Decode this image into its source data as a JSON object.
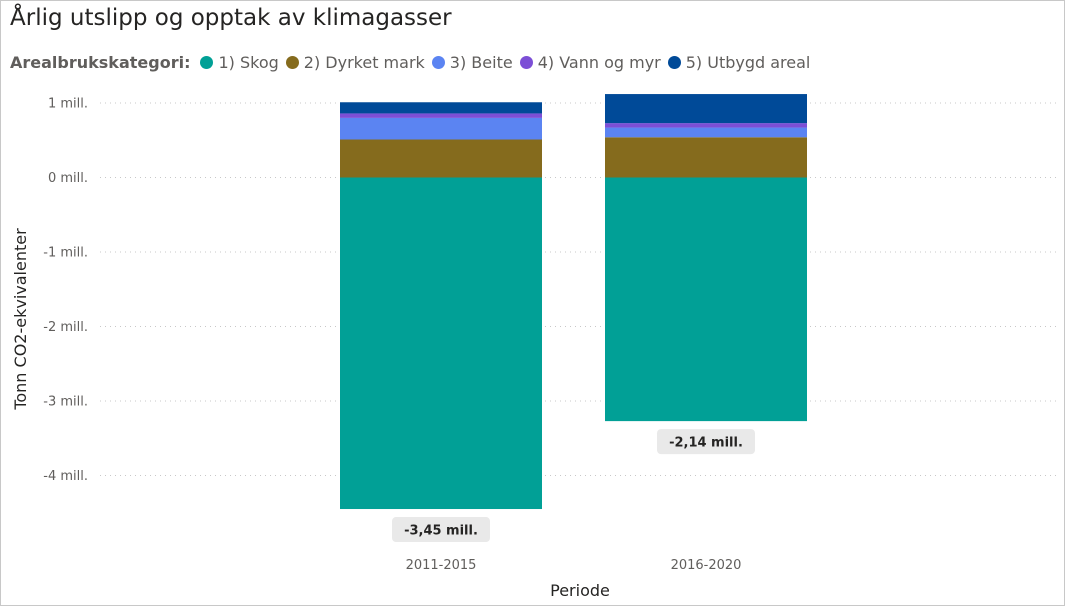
{
  "chart_data": {
    "type": "bar",
    "stacked": true,
    "title": "Årlig utslipp og opptak av klimagasser",
    "legend_title": "Arealbrukskategori:",
    "legend_position": "top-left",
    "xlabel": "Periode",
    "ylabel": "Tonn CO2-ekvivalenter",
    "ylim": [
      -4.5,
      1.2
    ],
    "yticks": [
      1,
      0,
      -1,
      -2,
      -3,
      -4
    ],
    "ytick_labels": [
      "1 mill.",
      "0 mill.",
      "-1 mill.",
      "-2 mill.",
      "-3 mill.",
      "-4 mill."
    ],
    "grid": true,
    "categories": [
      "2011-2015",
      "2016-2020"
    ],
    "series": [
      {
        "name": "1) Skog",
        "color": "#01a096",
        "values": [
          -4.45,
          -3.27
        ]
      },
      {
        "name": "2) Dyrket mark",
        "color": "#856b1d",
        "values": [
          0.51,
          0.54
        ]
      },
      {
        "name": "3) Beite",
        "color": "#5b84f2",
        "values": [
          0.29,
          0.13
        ]
      },
      {
        "name": "4) Vann og myr",
        "color": "#7c4fd6",
        "values": [
          0.06,
          0.06
        ]
      },
      {
        "name": "5) Utbygd areal",
        "color": "#004a98",
        "values": [
          0.15,
          0.39
        ]
      }
    ],
    "totals": [
      -3.45,
      -2.14
    ],
    "total_labels": [
      "-3,45 mill.",
      "-2,14 mill."
    ]
  }
}
